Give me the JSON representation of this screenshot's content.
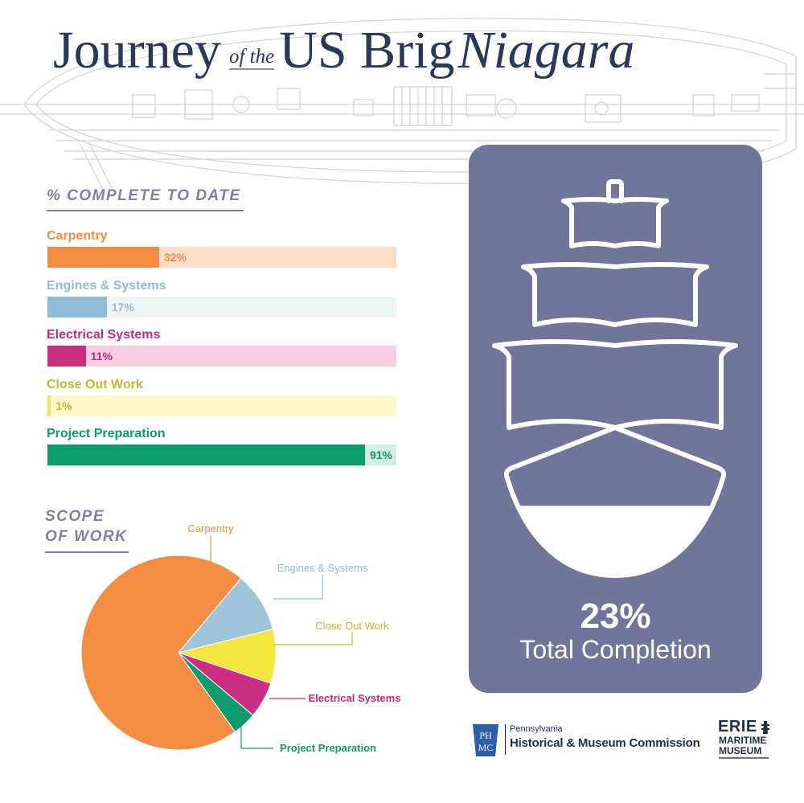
{
  "title": {
    "part1": "Journey",
    "part2": "of the",
    "part3": "US Brig",
    "part4": "Niagara"
  },
  "progress_section": {
    "heading": "% COMPLETE TO DATE"
  },
  "scope_section": {
    "heading": "SCOPE OF WORK"
  },
  "colors": {
    "carpentry": "#f28e43",
    "engines": "#9dc4d8",
    "electrical": "#cc2f82",
    "closeout": "#f4e640",
    "preparation": "#0d9c6e",
    "card": "#6f7699",
    "heading": "#7c7fa6",
    "title": "#283a57"
  },
  "chart_data": [
    {
      "type": "bar",
      "title": "% COMPLETE TO DATE",
      "orientation": "horizontal",
      "ylim": [
        0,
        100
      ],
      "categories": [
        "Carpentry",
        "Engines & Systems",
        "Electrical Systems",
        "Close Out Work",
        "Project Preparation"
      ],
      "values": [
        32,
        17,
        11,
        1,
        91
      ],
      "value_labels": [
        "32%",
        "17%",
        "11%",
        "1%",
        "91%"
      ],
      "colors": [
        "#f28e43",
        "#8fbdd4",
        "#cc2f82",
        "#f2e25a",
        "#0d9c6e"
      ],
      "track_colors": [
        "#fdddc8",
        "#eef5f5",
        "#f7cde2",
        "#fdf8cc",
        "#d3ede2"
      ],
      "label_colors": [
        "#f28e43",
        "#8fbdd4",
        "#c42a7d",
        "#c2b92a",
        "#0d9c6e"
      ]
    },
    {
      "type": "pie",
      "title": "SCOPE OF WORK",
      "categories": [
        "Carpentry",
        "Engines & Systems",
        "Close Out Work",
        "Electrical Systems",
        "Project Preparation"
      ],
      "values": [
        71,
        10,
        9,
        6,
        4
      ],
      "colors": [
        "#f28e43",
        "#9dc4d8",
        "#f4e640",
        "#cc2f82",
        "#0d9c6e"
      ],
      "label_colors": [
        "#f28e43",
        "#8fbdd4",
        "#c2b92a",
        "#c42a7d",
        "#0d9c6e"
      ]
    },
    {
      "type": "gauge",
      "label": "Total Completion",
      "value": 23,
      "value_label": "23%"
    }
  ],
  "logos": {
    "phmc_small": "Pennsylvania",
    "phmc_big": "Historical & Museum Commission",
    "phmc_mark": "PHMC",
    "emm_erie": "ERIE",
    "emm_maritime": "MARITIME",
    "emm_museum": "MUSEUM"
  }
}
